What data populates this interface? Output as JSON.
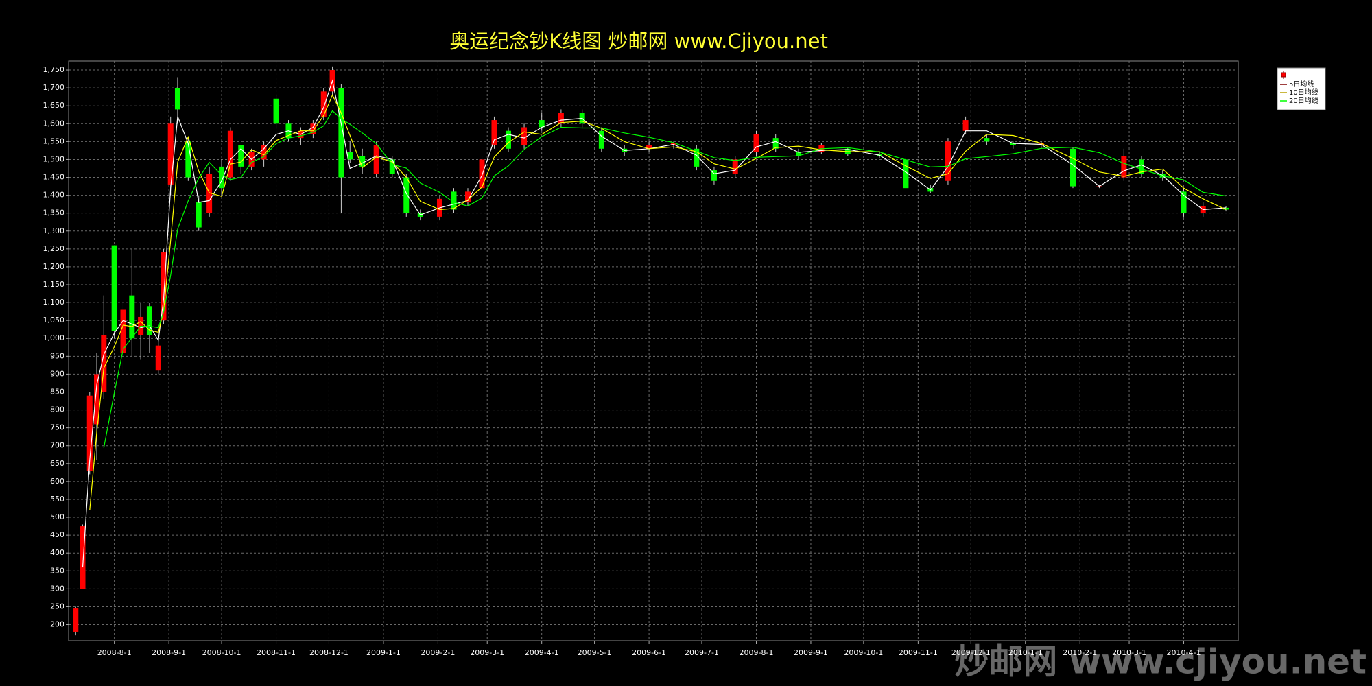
{
  "chart_data": {
    "type": "candlestick",
    "title": "奥运纪念钞K线图  炒邮网 www.Cjiyou.net",
    "watermark": "炒邮网 www.cjiyou.net",
    "x": [
      "2008-07-10",
      "2008-07-14",
      "2008-07-18",
      "2008-07-22",
      "2008-07-26",
      "2008-08-01",
      "2008-08-06",
      "2008-08-11",
      "2008-08-16",
      "2008-08-21",
      "2008-08-26",
      "2008-08-29",
      "2008-09-02",
      "2008-09-06",
      "2008-09-12",
      "2008-09-18",
      "2008-09-24",
      "2008-10-01",
      "2008-10-06",
      "2008-10-12",
      "2008-10-18",
      "2008-10-25",
      "2008-11-01",
      "2008-11-08",
      "2008-11-15",
      "2008-11-22",
      "2008-11-28",
      "2008-12-03",
      "2008-12-08",
      "2008-12-13",
      "2008-12-20",
      "2008-12-28",
      "2009-01-06",
      "2009-01-14",
      "2009-01-22",
      "2009-02-02",
      "2009-02-10",
      "2009-02-18",
      "2009-02-26",
      "2009-03-05",
      "2009-03-13",
      "2009-03-22",
      "2009-04-01",
      "2009-04-12",
      "2009-04-24",
      "2009-05-05",
      "2009-05-18",
      "2009-06-01",
      "2009-06-15",
      "2009-06-28",
      "2009-07-08",
      "2009-07-20",
      "2009-08-01",
      "2009-08-12",
      "2009-08-25",
      "2009-09-07",
      "2009-09-22",
      "2009-10-10",
      "2009-10-25",
      "2009-11-08",
      "2009-11-18",
      "2009-11-28",
      "2009-12-10",
      "2009-12-25",
      "2010-01-10",
      "2010-01-28",
      "2010-02-12",
      "2010-02-26",
      "2010-03-08",
      "2010-03-20",
      "2010-04-01",
      "2010-04-12",
      "2010-04-25"
    ],
    "open": [
      180,
      300,
      630,
      760,
      850,
      1260,
      960,
      1120,
      1010,
      1090,
      910,
      1050,
      1430,
      1700,
      1550,
      1380,
      1350,
      1480,
      1450,
      1540,
      1480,
      1500,
      1670,
      1600,
      1560,
      1570,
      1620,
      1690,
      1700,
      1520,
      1510,
      1460,
      1500,
      1450,
      1350,
      1340,
      1410,
      1380,
      1420,
      1540,
      1580,
      1540,
      1610,
      1600,
      1630,
      1580,
      1530,
      1530,
      1540,
      1530,
      1470,
      1460,
      1520,
      1560,
      1520,
      1520,
      1530,
      1515,
      1500,
      1420,
      1440,
      1580,
      1560,
      1545,
      1540,
      1530,
      1425,
      1450,
      1500,
      1460,
      1410,
      1350,
      1365
    ],
    "high": [
      250,
      480,
      850,
      960,
      1120,
      1260,
      1100,
      1250,
      1100,
      1100,
      1000,
      1250,
      1620,
      1730,
      1560,
      1400,
      1480,
      1500,
      1590,
      1540,
      1530,
      1550,
      1680,
      1610,
      1590,
      1610,
      1700,
      1760,
      1710,
      1550,
      1530,
      1550,
      1510,
      1460,
      1360,
      1400,
      1420,
      1420,
      1510,
      1620,
      1590,
      1600,
      1630,
      1640,
      1640,
      1590,
      1540,
      1550,
      1550,
      1540,
      1480,
      1510,
      1580,
      1570,
      1530,
      1545,
      1535,
      1520,
      1505,
      1430,
      1560,
      1620,
      1570,
      1550,
      1550,
      1535,
      1430,
      1530,
      1510,
      1470,
      1420,
      1380,
      1370
    ],
    "low": [
      170,
      300,
      620,
      660,
      830,
      1000,
      900,
      950,
      940,
      960,
      900,
      1040,
      1400,
      1600,
      1440,
      1300,
      1340,
      1400,
      1440,
      1460,
      1470,
      1480,
      1590,
      1550,
      1540,
      1560,
      1610,
      1680,
      1350,
      1490,
      1460,
      1450,
      1450,
      1340,
      1330,
      1330,
      1350,
      1370,
      1410,
      1530,
      1520,
      1530,
      1580,
      1590,
      1590,
      1520,
      1510,
      1520,
      1530,
      1470,
      1430,
      1450,
      1510,
      1520,
      1500,
      1515,
      1510,
      1505,
      1420,
      1405,
      1430,
      1570,
      1540,
      1530,
      1530,
      1420,
      1420,
      1440,
      1450,
      1440,
      1340,
      1340,
      1355
    ],
    "close": [
      245,
      475,
      840,
      900,
      1010,
      1020,
      1080,
      1000,
      1060,
      1010,
      980,
      1240,
      1600,
      1640,
      1450,
      1310,
      1460,
      1420,
      1580,
      1480,
      1520,
      1540,
      1600,
      1560,
      1580,
      1600,
      1690,
      1750,
      1450,
      1500,
      1480,
      1540,
      1460,
      1350,
      1340,
      1390,
      1360,
      1410,
      1500,
      1610,
      1530,
      1590,
      1590,
      1630,
      1600,
      1530,
      1520,
      1540,
      1545,
      1480,
      1440,
      1500,
      1570,
      1530,
      1510,
      1540,
      1515,
      1510,
      1420,
      1410,
      1550,
      1610,
      1550,
      1540,
      1545,
      1425,
      1425,
      1510,
      1460,
      1450,
      1350,
      1370,
      1360
    ],
    "up_color": "#ff0000",
    "down_color": "#00ff00",
    "series": [
      {
        "name": "5日均线",
        "color": "#ffffff",
        "values": [
          null,
          360,
          660,
          870,
          955,
          1015,
          1050,
          1040,
          1030,
          1035,
          995,
          1110,
          1420,
          1620,
          1545,
          1380,
          1385,
          1440,
          1500,
          1530,
          1500,
          1530,
          1570,
          1580,
          1570,
          1590,
          1645,
          1720,
          1600,
          1475,
          1490,
          1510,
          1500,
          1405,
          1345,
          1365,
          1375,
          1385,
          1455,
          1555,
          1570,
          1560,
          1590,
          1610,
          1615,
          1565,
          1525,
          1530,
          1542,
          1512,
          1460,
          1470,
          1535,
          1550,
          1520,
          1525,
          1528,
          1512,
          1465,
          1415,
          1480,
          1580,
          1580,
          1545,
          1542,
          1485,
          1425,
          1468,
          1485,
          1455,
          1400,
          1360,
          1365
        ]
      },
      {
        "name": "10日均线",
        "color": "#ffff00",
        "values": [
          null,
          null,
          520,
          738,
          917,
          977,
          1037,
          1033,
          1047,
          1023,
          1017,
          1077,
          1273,
          1493,
          1563,
          1467,
          1407,
          1397,
          1487,
          1493,
          1527,
          1513,
          1553,
          1567,
          1580,
          1580,
          1623,
          1680,
          1630,
          1567,
          1477,
          1507,
          1493,
          1450,
          1383,
          1360,
          1363,
          1387,
          1423,
          1507,
          1547,
          1577,
          1570,
          1603,
          1607,
          1587,
          1550,
          1530,
          1535,
          1522,
          1488,
          1473,
          1503,
          1533,
          1537,
          1527,
          1522,
          1522,
          1482,
          1447,
          1460,
          1523,
          1570,
          1567,
          1545,
          1503,
          1465,
          1453,
          1465,
          1473,
          1420,
          1390,
          1360
        ]
      },
      {
        "name": "20日均线",
        "color": "#00ff00",
        "values": [
          null,
          null,
          null,
          null,
          694,
          849,
          970,
          1002,
          1034,
          1034,
          1030,
          1074,
          1176,
          1306,
          1384,
          1448,
          1492,
          1456,
          1444,
          1450,
          1492,
          1508,
          1544,
          1560,
          1566,
          1576,
          1594,
          1636,
          1614,
          1598,
          1574,
          1544,
          1486,
          1476,
          1434,
          1408,
          1380,
          1370,
          1392,
          1454,
          1482,
          1528,
          1564,
          1590,
          1588,
          1588,
          1574,
          1562,
          1547,
          1523,
          1505,
          1497,
          1506,
          1508,
          1510,
          1530,
          1533,
          1521,
          1499,
          1479,
          1481,
          1502,
          1508,
          1516,
          1531,
          1534,
          1519,
          1489,
          1473,
          1454,
          1443,
          1408,
          1398
        ]
      }
    ],
    "xlim": [
      "2008-07-06",
      "2010-05-02"
    ],
    "xticks": [
      {
        "value": "2008-08-01",
        "label": "2008-8-1"
      },
      {
        "value": "2008-09-01",
        "label": "2008-9-1"
      },
      {
        "value": "2008-10-01",
        "label": "2008-10-1"
      },
      {
        "value": "2008-11-01",
        "label": "2008-11-1"
      },
      {
        "value": "2008-12-01",
        "label": "2008-12-1"
      },
      {
        "value": "2009-01-01",
        "label": "2009-1-1"
      },
      {
        "value": "2009-02-01",
        "label": "2009-2-1"
      },
      {
        "value": "2009-03-01",
        "label": "2009-3-1"
      },
      {
        "value": "2009-04-01",
        "label": "2009-4-1"
      },
      {
        "value": "2009-05-01",
        "label": "2009-5-1"
      },
      {
        "value": "2009-06-01",
        "label": "2009-6-1"
      },
      {
        "value": "2009-07-01",
        "label": "2009-7-1"
      },
      {
        "value": "2009-08-01",
        "label": "2009-8-1"
      },
      {
        "value": "2009-09-01",
        "label": "2009-9-1"
      },
      {
        "value": "2009-10-01",
        "label": "2009-10-1"
      },
      {
        "value": "2009-11-01",
        "label": "2009-11-1"
      },
      {
        "value": "2009-12-01",
        "label": "2009-12-1"
      },
      {
        "value": "2010-01-01",
        "label": "2010-1-1"
      },
      {
        "value": "2010-02-01",
        "label": "2010-2-1"
      },
      {
        "value": "2010-03-01",
        "label": "2010-3-1"
      },
      {
        "value": "2010-04-01",
        "label": "2010-4-1"
      }
    ],
    "ylim": [
      155,
      1775
    ],
    "yticks": [
      200,
      250,
      300,
      350,
      400,
      450,
      500,
      550,
      600,
      650,
      700,
      750,
      800,
      850,
      900,
      950,
      {
        "value": 1000,
        "label": "1,000"
      },
      {
        "value": 1050,
        "label": "1,050"
      },
      {
        "value": 1100,
        "label": "1,100"
      },
      {
        "value": 1150,
        "label": "1,150"
      },
      {
        "value": 1200,
        "label": "1,200"
      },
      {
        "value": 1250,
        "label": "1,250"
      },
      {
        "value": 1300,
        "label": "1,300"
      },
      {
        "value": 1350,
        "label": "1,350"
      },
      {
        "value": 1400,
        "label": "1,400"
      },
      {
        "value": 1450,
        "label": "1,450"
      },
      {
        "value": 1500,
        "label": "1,500"
      },
      {
        "value": 1550,
        "label": "1,550"
      },
      {
        "value": 1600,
        "label": "1,600"
      },
      {
        "value": 1650,
        "label": "1,650"
      },
      {
        "value": 1700,
        "label": "1,700"
      },
      {
        "value": 1750,
        "label": "1,750"
      }
    ],
    "grid": true,
    "legend": "upper right"
  }
}
